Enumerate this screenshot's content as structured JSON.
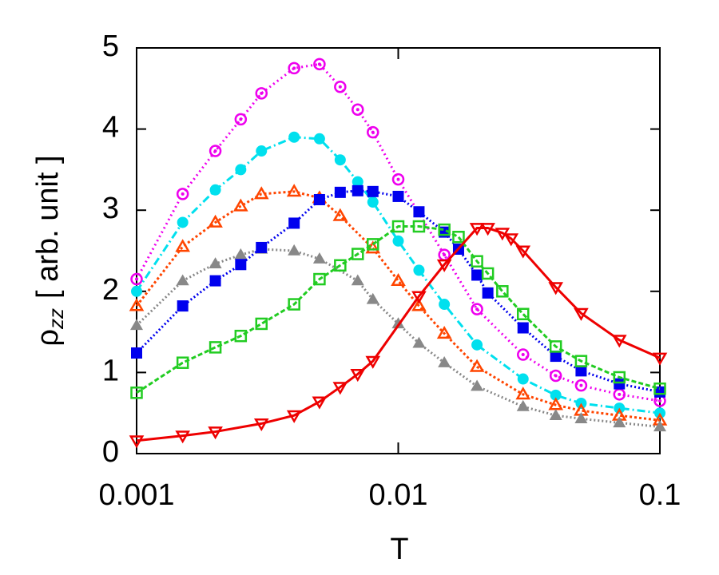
{
  "chart_data": {
    "type": "line",
    "xlabel": "T",
    "ylabel": "ρ",
    "ylabel_subscript": "zz",
    "ylabel_rest": "[ arb. unit ]",
    "xscale": "log",
    "xlim": [
      0.001,
      0.1
    ],
    "xticks": [
      0.001,
      0.01,
      0.1
    ],
    "ylim": [
      0,
      5
    ],
    "yticks": [
      0,
      1,
      2,
      3,
      4,
      5
    ],
    "series": [
      {
        "color": "#ee00ee",
        "marker": "ring",
        "dash": "2,4",
        "x": [
          0.001,
          0.0015,
          0.002,
          0.0025,
          0.003,
          0.004,
          0.005,
          0.006,
          0.007,
          0.008,
          0.01,
          0.015,
          0.02,
          0.03,
          0.04,
          0.05,
          0.07,
          0.1
        ],
        "values": [
          2.15,
          3.2,
          3.73,
          4.12,
          4.44,
          4.75,
          4.8,
          4.52,
          4.24,
          3.96,
          3.38,
          2.45,
          1.78,
          1.22,
          0.96,
          0.84,
          0.73,
          0.65
        ]
      },
      {
        "color": "#00e0ee",
        "marker": "dot",
        "dash": "10,4,2,4",
        "x": [
          0.001,
          0.0015,
          0.002,
          0.0025,
          0.003,
          0.004,
          0.005,
          0.006,
          0.007,
          0.008,
          0.01,
          0.012,
          0.015,
          0.02,
          0.03,
          0.04,
          0.05,
          0.07,
          0.1
        ],
        "values": [
          2.0,
          2.85,
          3.25,
          3.5,
          3.73,
          3.9,
          3.88,
          3.62,
          3.35,
          3.1,
          2.62,
          2.26,
          1.84,
          1.34,
          0.92,
          0.72,
          0.62,
          0.56,
          0.5
        ]
      },
      {
        "color": "#ff4500",
        "marker": "triangle-open",
        "dash": "3,3",
        "x": [
          0.001,
          0.0015,
          0.002,
          0.0025,
          0.003,
          0.004,
          0.005,
          0.006,
          0.008,
          0.01,
          0.012,
          0.015,
          0.02,
          0.03,
          0.04,
          0.05,
          0.07,
          0.1
        ],
        "values": [
          1.82,
          2.55,
          2.85,
          3.05,
          3.2,
          3.23,
          3.15,
          2.93,
          2.53,
          2.13,
          1.82,
          1.48,
          1.07,
          0.73,
          0.6,
          0.53,
          0.47,
          0.41
        ]
      },
      {
        "color": "#888888",
        "marker": "triangle",
        "dash": "2,3",
        "x": [
          0.001,
          0.0015,
          0.002,
          0.0025,
          0.003,
          0.004,
          0.005,
          0.007,
          0.008,
          0.01,
          0.012,
          0.015,
          0.02,
          0.03,
          0.04,
          0.05,
          0.07,
          0.1
        ],
        "values": [
          1.58,
          2.13,
          2.34,
          2.45,
          2.52,
          2.5,
          2.4,
          2.13,
          1.9,
          1.6,
          1.36,
          1.12,
          0.83,
          0.58,
          0.47,
          0.43,
          0.38,
          0.33
        ]
      },
      {
        "color": "#0000ee",
        "marker": "square",
        "dash": "2,3",
        "x": [
          0.001,
          0.0015,
          0.002,
          0.0025,
          0.003,
          0.004,
          0.005,
          0.006,
          0.007,
          0.008,
          0.01,
          0.012,
          0.015,
          0.017,
          0.02,
          0.022,
          0.03,
          0.04,
          0.05,
          0.07,
          0.1
        ],
        "values": [
          1.24,
          1.82,
          2.13,
          2.33,
          2.54,
          2.84,
          3.13,
          3.22,
          3.24,
          3.23,
          3.17,
          2.98,
          2.73,
          2.52,
          2.2,
          1.98,
          1.55,
          1.2,
          1.02,
          0.86,
          0.76
        ]
      },
      {
        "color": "#22cc22",
        "marker": "square-open",
        "dash": "6,3",
        "x": [
          0.001,
          0.0015,
          0.002,
          0.0025,
          0.003,
          0.004,
          0.005,
          0.006,
          0.007,
          0.008,
          0.01,
          0.012,
          0.015,
          0.017,
          0.02,
          0.022,
          0.025,
          0.03,
          0.04,
          0.05,
          0.07,
          0.1
        ],
        "values": [
          0.75,
          1.12,
          1.31,
          1.45,
          1.6,
          1.84,
          2.15,
          2.32,
          2.46,
          2.58,
          2.8,
          2.8,
          2.76,
          2.67,
          2.37,
          2.22,
          2.0,
          1.72,
          1.32,
          1.14,
          0.94,
          0.8
        ]
      },
      {
        "color": "#ee0000",
        "marker": "triangle-down-open",
        "dash": "",
        "x": [
          0.001,
          0.0015,
          0.002,
          0.003,
          0.004,
          0.005,
          0.006,
          0.007,
          0.008,
          0.012,
          0.015,
          0.02,
          0.022,
          0.025,
          0.027,
          0.03,
          0.04,
          0.05,
          0.07,
          0.1
        ],
        "values": [
          0.16,
          0.22,
          0.27,
          0.37,
          0.47,
          0.64,
          0.82,
          0.98,
          1.14,
          1.94,
          2.33,
          2.78,
          2.78,
          2.72,
          2.65,
          2.5,
          2.05,
          1.73,
          1.4,
          1.18
        ]
      }
    ]
  }
}
